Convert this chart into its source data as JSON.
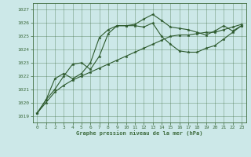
{
  "title": "Graphe pression niveau de la mer (hPa)",
  "bg_color": "#cce8e8",
  "grid_color": "#3d6b3d",
  "line_color": "#2d5a2d",
  "xlim": [
    -0.5,
    23.5
  ],
  "ylim": [
    1018.5,
    1027.5
  ],
  "yticks": [
    1019,
    1020,
    1021,
    1022,
    1023,
    1024,
    1025,
    1026,
    1027
  ],
  "xticks": [
    0,
    1,
    2,
    3,
    4,
    5,
    6,
    7,
    8,
    9,
    10,
    11,
    12,
    13,
    14,
    15,
    16,
    17,
    18,
    19,
    20,
    21,
    22,
    23
  ],
  "series1_x": [
    0,
    1,
    2,
    3,
    4,
    5,
    6,
    7,
    8,
    9,
    10,
    11,
    12,
    13,
    14,
    15,
    16,
    17,
    18,
    19,
    20,
    21,
    22,
    23
  ],
  "series1_y": [
    1019.2,
    1020.2,
    1021.8,
    1022.2,
    1021.8,
    1022.2,
    1023.0,
    1024.9,
    1025.5,
    1025.8,
    1025.8,
    1025.9,
    1026.3,
    1026.65,
    1026.2,
    1025.7,
    1025.6,
    1025.5,
    1025.3,
    1025.1,
    1025.4,
    1025.8,
    1025.4,
    1025.8
  ],
  "series2_x": [
    0,
    1,
    2,
    3,
    4,
    5,
    6,
    7,
    8,
    9,
    10,
    11,
    12,
    13,
    14,
    15,
    16,
    17,
    18,
    19,
    20,
    21,
    22,
    23
  ],
  "series2_y": [
    1019.2,
    1020.2,
    1021.0,
    1022.0,
    1022.9,
    1023.0,
    1022.5,
    1023.5,
    1025.2,
    1025.8,
    1025.8,
    1025.8,
    1025.7,
    1026.0,
    1025.0,
    1024.4,
    1023.9,
    1023.8,
    1023.8,
    1024.1,
    1024.3,
    1024.8,
    1025.3,
    1025.8
  ],
  "series3_x": [
    0,
    1,
    2,
    3,
    4,
    5,
    6,
    7,
    8,
    9,
    10,
    11,
    12,
    13,
    14,
    15,
    16,
    17,
    18,
    19,
    20,
    21,
    22,
    23
  ],
  "series3_y": [
    1019.2,
    1020.0,
    1020.8,
    1021.3,
    1021.7,
    1022.0,
    1022.3,
    1022.6,
    1022.9,
    1023.2,
    1023.5,
    1023.8,
    1024.1,
    1024.4,
    1024.7,
    1025.0,
    1025.1,
    1025.1,
    1025.2,
    1025.3,
    1025.3,
    1025.5,
    1025.7,
    1025.9
  ]
}
